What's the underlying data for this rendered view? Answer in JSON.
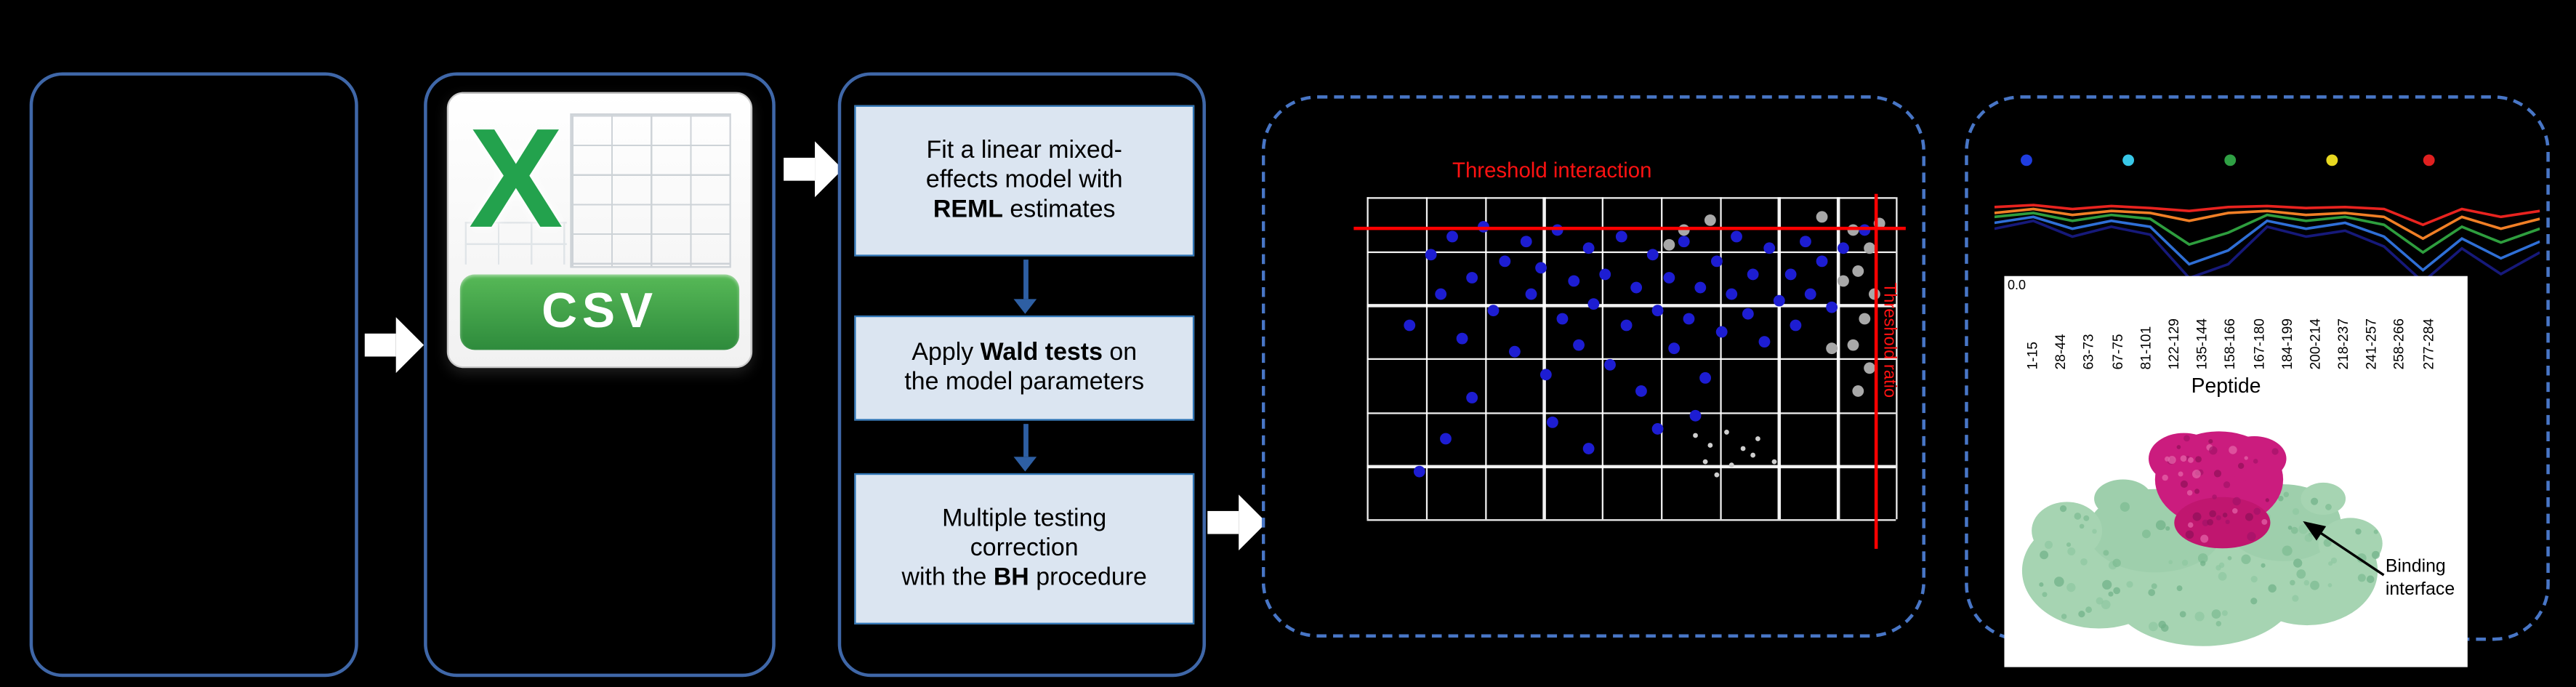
{
  "csv_icon": {
    "logo_letter": "X",
    "banner": "CSV"
  },
  "pipeline": {
    "steps": [
      {
        "line1": "Fit a linear mixed-",
        "line2": "effects model with",
        "bold": "REML",
        "tail": " estimates"
      },
      {
        "pre": "Apply ",
        "bold": "Wald tests",
        "mid": " on",
        "line2": "the model parameters"
      },
      {
        "line1": "Multiple testing",
        "line2": "correction",
        "pre": "with the ",
        "bold": "BH",
        "tail": " procedure"
      }
    ]
  },
  "protein": {
    "annotation_line1": "Binding",
    "annotation_line2": "interface"
  },
  "chart_data": [
    {
      "id": "interaction-scatter",
      "type": "scatter",
      "h_threshold_label": "Threshold interaction",
      "v_threshold_label": "Threshold ratio",
      "h_threshold_y_pct": 9,
      "v_threshold_x_pct": 96,
      "grid": {
        "cols": 9,
        "rows": 6
      },
      "series": [
        {
          "name": "interacting-proteins",
          "color": "#1d1dd2",
          "size": 7,
          "points": [
            [
              8,
              40
            ],
            [
              12,
              18
            ],
            [
              14,
              30
            ],
            [
              16,
              12
            ],
            [
              18,
              44
            ],
            [
              20,
              25
            ],
            [
              22,
              9
            ],
            [
              24,
              35
            ],
            [
              26,
              20
            ],
            [
              28,
              48
            ],
            [
              30,
              14
            ],
            [
              31,
              30
            ],
            [
              33,
              22
            ],
            [
              34,
              55
            ],
            [
              36,
              10
            ],
            [
              37,
              38
            ],
            [
              39,
              26
            ],
            [
              40,
              46
            ],
            [
              42,
              16
            ],
            [
              43,
              33
            ],
            [
              45,
              24
            ],
            [
              46,
              52
            ],
            [
              48,
              12
            ],
            [
              49,
              40
            ],
            [
              51,
              28
            ],
            [
              52,
              60
            ],
            [
              54,
              18
            ],
            [
              55,
              35
            ],
            [
              57,
              25
            ],
            [
              58,
              47
            ],
            [
              60,
              14
            ],
            [
              61,
              38
            ],
            [
              63,
              28
            ],
            [
              64,
              56
            ],
            [
              66,
              20
            ],
            [
              67,
              42
            ],
            [
              69,
              30
            ],
            [
              70,
              12
            ],
            [
              72,
              36
            ],
            [
              73,
              24
            ],
            [
              75,
              45
            ],
            [
              76,
              16
            ],
            [
              78,
              32
            ],
            [
              80,
              24
            ],
            [
              81,
              40
            ],
            [
              83,
              14
            ],
            [
              84,
              30
            ],
            [
              86,
              20
            ],
            [
              88,
              34
            ],
            [
              90,
              16
            ],
            [
              94,
              10
            ],
            [
              35,
              70
            ],
            [
              42,
              78
            ],
            [
              20,
              62
            ],
            [
              15,
              75
            ],
            [
              55,
              72
            ],
            [
              62,
              68
            ],
            [
              10,
              85
            ]
          ]
        },
        {
          "name": "background-proteins",
          "color": "#a8a8a8",
          "size": 7,
          "points": [
            [
              92,
              10
            ],
            [
              95,
              16
            ],
            [
              93,
              23
            ],
            [
              96,
              30
            ],
            [
              94,
              38
            ],
            [
              92,
              46
            ],
            [
              95,
              53
            ],
            [
              93,
              60
            ],
            [
              90,
              26
            ],
            [
              97,
              8
            ],
            [
              60,
              10
            ],
            [
              65,
              7
            ],
            [
              57,
              15
            ],
            [
              86,
              6
            ],
            [
              88,
              47
            ]
          ]
        },
        {
          "name": "minor-points",
          "color": "#cfcfcf",
          "size": 3,
          "points": [
            [
              62,
              74
            ],
            [
              65,
              77
            ],
            [
              68,
              73
            ],
            [
              71,
              78
            ],
            [
              74,
              75
            ],
            [
              64,
              82
            ],
            [
              69,
              83
            ],
            [
              73,
              80
            ],
            [
              77,
              82
            ],
            [
              66,
              86
            ]
          ]
        }
      ]
    },
    {
      "id": "epitope-profile",
      "type": "line",
      "categories": [
        "1-15",
        "28-44",
        "63-73",
        "67-75",
        "81-101",
        "122-129",
        "135-144",
        "158-166",
        "167-180",
        "184-199",
        "200-214",
        "218-237",
        "241-257",
        "258-266",
        "277-284"
      ],
      "xlabel": "Peptide",
      "ytick_label": "0.0",
      "legend_dots": [
        {
          "color": "#1f3de0",
          "x_pct": 4.8
        },
        {
          "color": "#38c8e8",
          "x_pct": 23.5
        },
        {
          "color": "#2fa044",
          "x_pct": 42.2
        },
        {
          "color": "#e8d820",
          "x_pct": 60.8
        },
        {
          "color": "#e02020",
          "x_pct": 78.6
        }
      ],
      "series": [
        {
          "name": "series-red",
          "color": "#e8231f",
          "values": [
            20,
            18,
            22,
            19,
            21,
            24,
            20,
            19,
            21,
            20,
            22,
            38,
            22,
            30,
            24
          ]
        },
        {
          "name": "series-orange",
          "color": "#f07f26",
          "values": [
            26,
            22,
            28,
            24,
            26,
            34,
            26,
            24,
            28,
            26,
            30,
            52,
            30,
            42,
            32
          ]
        },
        {
          "name": "series-green",
          "color": "#2e9e3e",
          "values": [
            30,
            26,
            34,
            28,
            32,
            58,
            46,
            28,
            34,
            30,
            38,
            66,
            40,
            56,
            42
          ]
        },
        {
          "name": "series-blue",
          "color": "#2f6fd6",
          "values": [
            36,
            30,
            42,
            34,
            40,
            78,
            64,
            34,
            42,
            36,
            50,
            84,
            52,
            72,
            55
          ]
        },
        {
          "name": "series-navy",
          "color": "#16197a",
          "values": [
            42,
            34,
            50,
            40,
            48,
            92,
            78,
            40,
            50,
            44,
            60,
            96,
            62,
            88,
            66
          ]
        }
      ]
    }
  ]
}
